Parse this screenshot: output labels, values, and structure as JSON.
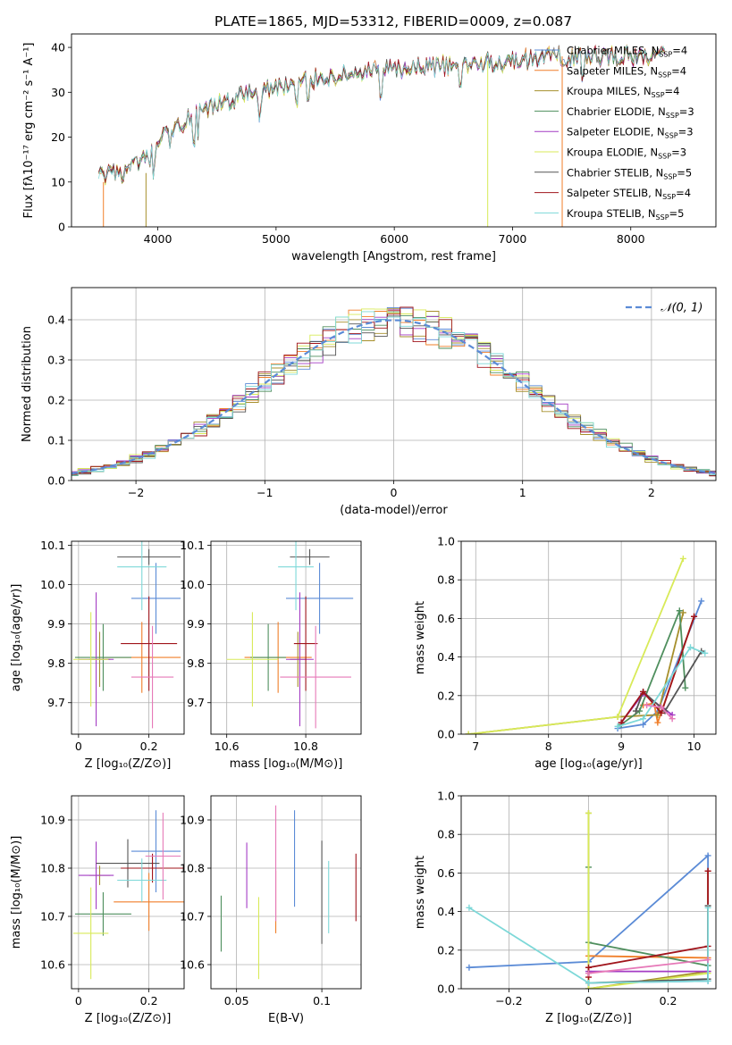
{
  "title": "PLATE=1865, MJD=53312, FIBERID=0009, z=0.087",
  "colors": {
    "CM": "#5b8bd6",
    "SM": "#f07f2a",
    "KM": "#a68f2c",
    "CE": "#4f8f5e",
    "SE": "#a43cc4",
    "KE": "#d8ea58",
    "CS": "#555555",
    "SS": "#a0141b",
    "KS": "#7dd8d8",
    "pink": "#e679b8",
    "gauss": "#5b8bd6"
  },
  "chart_data": [
    {
      "type": "line",
      "title": "PLATE=1865, MJD=53312, FIBERID=0009, z=0.087",
      "xlabel": "wavelength [Angstrom, rest frame]",
      "ylabel": "Flux [fλ10⁻¹⁷ erg cm⁻² s⁻¹ A⁻¹]",
      "xlim": [
        3270,
        8720
      ],
      "ylim": [
        0,
        43
      ],
      "xticks": [
        4000,
        5000,
        6000,
        7000,
        8000
      ],
      "yticks": [
        0,
        10,
        20,
        30,
        40
      ],
      "legend": "upper-right",
      "legend_entries": [
        {
          "key": "CM",
          "label": "Chabrier MILES, N_SSP=4"
        },
        {
          "key": "SM",
          "label": "Salpeter MILES, N_SSP=4"
        },
        {
          "key": "KM",
          "label": "Kroupa MILES, N_SSP=4"
        },
        {
          "key": "CE",
          "label": "Chabrier ELODIE, N_SSP=3"
        },
        {
          "key": "SE",
          "label": "Salpeter ELODIE, N_SSP=3"
        },
        {
          "key": "KE",
          "label": "Kroupa ELODIE, N_SSP=3"
        },
        {
          "key": "CS",
          "label": "Chabrier STELIB, N_SSP=5"
        },
        {
          "key": "SS",
          "label": "Salpeter STELIB, N_SSP=4"
        },
        {
          "key": "KS",
          "label": "Kroupa STELIB, N_SSP=5"
        }
      ],
      "continuum": [
        [
          3500,
          11
        ],
        [
          3700,
          12
        ],
        [
          3900,
          15
        ],
        [
          4000,
          19
        ],
        [
          4200,
          23
        ],
        [
          4500,
          27
        ],
        [
          4800,
          30
        ],
        [
          5000,
          31
        ],
        [
          5300,
          33
        ],
        [
          5600,
          34
        ],
        [
          6000,
          35
        ],
        [
          6500,
          36
        ],
        [
          7000,
          37
        ],
        [
          7300,
          38
        ],
        [
          8300,
          38
        ]
      ]
    },
    {
      "type": "histogram",
      "xlabel": "(data-model)/error",
      "ylabel": "Normed distribution",
      "xlim": [
        -2.5,
        2.5
      ],
      "ylim": [
        0,
        0.48
      ],
      "xticks": [
        -2,
        -1,
        0,
        1,
        2
      ],
      "yticks": [
        0.0,
        0.1,
        0.2,
        0.3,
        0.4
      ],
      "legend": "upper-right",
      "legend_label": "𝒩(0, 1)",
      "bin_width": 0.1,
      "curve": "standard normal density"
    },
    {
      "type": "scatter",
      "xlabel": "Z [log₁₀(Z/Z⊙)]",
      "ylabel": "age  [log₁₀(age/yr)]",
      "xlim": [
        -0.02,
        0.3
      ],
      "ylim": [
        9.62,
        10.11
      ],
      "xticks": [
        0.0,
        0.2
      ],
      "yticks": [
        9.7,
        9.8,
        9.9,
        10.0,
        10.1
      ],
      "points": [
        {
          "key": "CM",
          "x": 0.22,
          "xe": 0.07,
          "y": 9.965,
          "ye": 0.09
        },
        {
          "key": "SM",
          "x": 0.18,
          "xe": 0.11,
          "y": 9.815,
          "ye": 0.09
        },
        {
          "key": "KM",
          "x": 0.06,
          "xe": 0.03,
          "y": 9.81,
          "ye": 0.07
        },
        {
          "key": "CE",
          "x": 0.07,
          "xe": 0.08,
          "y": 9.815,
          "ye": 0.085
        },
        {
          "key": "SE",
          "x": 0.05,
          "xe": 0.05,
          "y": 9.81,
          "ye": 0.17
        },
        {
          "key": "KE",
          "x": 0.035,
          "xe": 0.05,
          "y": 9.81,
          "ye": 0.12
        },
        {
          "key": "CS",
          "x": 0.2,
          "xe": 0.09,
          "y": 10.07,
          "ye": 0.02
        },
        {
          "key": "SS",
          "x": 0.2,
          "xe": 0.08,
          "y": 9.85,
          "ye": 0.12
        },
        {
          "key": "KS",
          "x": 0.18,
          "xe": 0.07,
          "y": 10.045,
          "ye": 0.11
        },
        {
          "key": "pink",
          "x": 0.21,
          "xe": 0.06,
          "y": 9.765,
          "ye": 0.13
        }
      ]
    },
    {
      "type": "scatter",
      "xlabel": "mass [log₁₀(M/M⊙)]",
      "ylabel": "",
      "xlim": [
        10.56,
        10.94
      ],
      "ylim": [
        9.62,
        10.11
      ],
      "xticks": [
        10.6,
        10.8
      ],
      "yticks": [
        9.7,
        9.8,
        9.9,
        10.0,
        10.1
      ],
      "points": [
        {
          "key": "CM",
          "x": 10.835,
          "xe": 0.085,
          "y": 9.965,
          "ye": 0.09
        },
        {
          "key": "SM",
          "x": 10.73,
          "xe": 0.085,
          "y": 9.815,
          "ye": 0.09
        },
        {
          "key": "KM",
          "x": 10.78,
          "xe": 0.02,
          "y": 9.81,
          "ye": 0.07
        },
        {
          "key": "CE",
          "x": 10.705,
          "xe": 0.045,
          "y": 9.815,
          "ye": 0.085
        },
        {
          "key": "SE",
          "x": 10.785,
          "xe": 0.035,
          "y": 9.81,
          "ye": 0.17
        },
        {
          "key": "KE",
          "x": 10.665,
          "xe": 0.065,
          "y": 9.81,
          "ye": 0.12
        },
        {
          "key": "CS",
          "x": 10.81,
          "xe": 0.05,
          "y": 10.07,
          "ye": 0.02
        },
        {
          "key": "SS",
          "x": 10.8,
          "xe": 0.03,
          "y": 9.85,
          "ye": 0.12
        },
        {
          "key": "KS",
          "x": 10.775,
          "xe": 0.045,
          "y": 10.045,
          "ye": 0.11
        },
        {
          "key": "pink",
          "x": 10.825,
          "xe": 0.09,
          "y": 9.765,
          "ye": 0.13
        }
      ]
    },
    {
      "type": "line",
      "xlabel": "age  [log₁₀(age/yr)]",
      "ylabel": "mass weight",
      "xlim": [
        6.8,
        10.3
      ],
      "ylim": [
        0,
        1.0
      ],
      "xticks": [
        7,
        8,
        9,
        10
      ],
      "yticks": [
        0.0,
        0.2,
        0.4,
        0.6,
        0.8,
        1.0
      ],
      "series": [
        {
          "key": "CM",
          "points": [
            [
              8.95,
              0.03
            ],
            [
              9.3,
              0.05
            ],
            [
              9.5,
              0.12
            ],
            [
              10.1,
              0.69
            ]
          ]
        },
        {
          "key": "SM",
          "points": [
            [
              9.3,
              0.15
            ],
            [
              9.45,
              0.16
            ],
            [
              9.5,
              0.06
            ],
            [
              10.0,
              0.61
            ]
          ]
        },
        {
          "key": "KM",
          "points": [
            [
              6.9,
              0.0
            ],
            [
              8.95,
              0.09
            ],
            [
              9.5,
              0.1
            ],
            [
              9.85,
              0.63
            ]
          ]
        },
        {
          "key": "CE",
          "points": [
            [
              9.0,
              0.05
            ],
            [
              9.25,
              0.12
            ],
            [
              9.8,
              0.64
            ],
            [
              9.88,
              0.24
            ]
          ]
        },
        {
          "key": "SE",
          "points": [
            [
              9.0,
              0.06
            ],
            [
              9.3,
              0.21
            ],
            [
              9.7,
              0.1
            ]
          ]
        },
        {
          "key": "KE",
          "points": [
            [
              6.9,
              0.0
            ],
            [
              8.95,
              0.09
            ],
            [
              9.85,
              0.91
            ]
          ]
        },
        {
          "key": "CS",
          "points": [
            [
              9.2,
              0.12
            ],
            [
              9.3,
              0.22
            ],
            [
              9.6,
              0.12
            ],
            [
              10.1,
              0.43
            ]
          ]
        },
        {
          "key": "SS",
          "points": [
            [
              9.0,
              0.06
            ],
            [
              9.3,
              0.22
            ],
            [
              9.55,
              0.11
            ],
            [
              10.0,
              0.61
            ]
          ]
        },
        {
          "key": "KS",
          "points": [
            [
              8.95,
              0.04
            ],
            [
              9.3,
              0.08
            ],
            [
              9.95,
              0.45
            ],
            [
              10.15,
              0.42
            ]
          ]
        },
        {
          "key": "pink",
          "points": [
            [
              9.35,
              0.15
            ],
            [
              9.55,
              0.14
            ],
            [
              9.7,
              0.08
            ]
          ]
        }
      ]
    },
    {
      "type": "scatter",
      "xlabel": "Z [log₁₀(Z/Z⊙)]",
      "ylabel": "mass [log₁₀(M/M⊙)]",
      "xlim": [
        -0.02,
        0.3
      ],
      "ylim": [
        10.55,
        10.95
      ],
      "xticks": [
        0.0,
        0.2
      ],
      "yticks": [
        10.6,
        10.7,
        10.8,
        10.9
      ],
      "points": [
        {
          "key": "CM",
          "x": 0.22,
          "xe": 0.07,
          "y": 10.835,
          "ye": 0.085
        },
        {
          "key": "SM",
          "x": 0.2,
          "xe": 0.1,
          "y": 10.73,
          "ye": 0.06
        },
        {
          "key": "KM",
          "x": 0.06,
          "xe": 0.03,
          "y": 10.785,
          "ye": 0.02
        },
        {
          "key": "CE",
          "x": 0.07,
          "xe": 0.08,
          "y": 10.705,
          "ye": 0.045
        },
        {
          "key": "SE",
          "x": 0.05,
          "xe": 0.05,
          "y": 10.785,
          "ye": 0.07
        },
        {
          "key": "KE",
          "x": 0.035,
          "xe": 0.05,
          "y": 10.665,
          "ye": 0.095
        },
        {
          "key": "CS",
          "x": 0.14,
          "xe": 0.09,
          "y": 10.81,
          "ye": 0.05
        },
        {
          "key": "SS",
          "x": 0.21,
          "xe": 0.09,
          "y": 10.8,
          "ye": 0.03
        },
        {
          "key": "KS",
          "x": 0.18,
          "xe": 0.07,
          "y": 10.775,
          "ye": 0.045
        },
        {
          "key": "pink",
          "x": 0.24,
          "xe": 0.05,
          "y": 10.825,
          "ye": 0.09
        }
      ]
    },
    {
      "type": "scatter",
      "xlabel": "E(B-V)",
      "ylabel": "",
      "xlim": [
        0.035,
        0.123
      ],
      "ylim": [
        10.55,
        10.95
      ],
      "xticks": [
        0.05,
        0.1
      ],
      "yticks": [
        10.6,
        10.7,
        10.8,
        10.9
      ],
      "points": [
        {
          "key": "CE",
          "x": 0.041,
          "y": 10.685,
          "ye": 0.058
        },
        {
          "key": "SE",
          "x": 0.056,
          "y": 10.785,
          "ye": 0.068
        },
        {
          "key": "KE",
          "x": 0.063,
          "y": 10.655,
          "ye": 0.085
        },
        {
          "key": "SM",
          "x": 0.073,
          "y": 10.73,
          "ye": 0.065
        },
        {
          "key": "pink",
          "x": 0.073,
          "y": 10.81,
          "ye": 0.12
        },
        {
          "key": "CM",
          "x": 0.084,
          "y": 10.82,
          "ye": 0.1
        },
        {
          "key": "CS",
          "x": 0.1,
          "y": 10.75,
          "ye": 0.107
        },
        {
          "key": "KS",
          "x": 0.104,
          "y": 10.74,
          "ye": 0.075
        },
        {
          "key": "SS",
          "x": 0.12,
          "y": 10.76,
          "ye": 0.07
        }
      ]
    },
    {
      "type": "line",
      "xlabel": "Z [log₁₀(Z/Z⊙)]",
      "ylabel": "mass weight",
      "xlim": [
        -0.32,
        0.32
      ],
      "ylim": [
        0,
        1.0
      ],
      "xticks": [
        -0.2,
        0.0,
        0.2
      ],
      "yticks": [
        0.0,
        0.2,
        0.4,
        0.6,
        0.8,
        1.0
      ],
      "series": [
        {
          "key": "CM",
          "points": [
            [
              -0.3,
              0.11
            ],
            [
              0.0,
              0.14
            ],
            [
              0.3,
              0.69
            ],
            [
              0.3,
              0.04
            ],
            [
              0.0,
              0.03
            ]
          ]
        },
        {
          "key": "SM",
          "points": [
            [
              0.0,
              0.17
            ],
            [
              0.3,
              0.16
            ],
            [
              0.3,
              0.61
            ]
          ]
        },
        {
          "key": "KM",
          "points": [
            [
              0.0,
              0.91
            ],
            [
              0.0,
              0.0
            ],
            [
              0.3,
              0.09
            ]
          ]
        },
        {
          "key": "CE",
          "points": [
            [
              0.0,
              0.63
            ],
            [
              0.0,
              0.24
            ],
            [
              0.3,
              0.12
            ]
          ]
        },
        {
          "key": "SE",
          "points": [
            [
              0.0,
              0.09
            ],
            [
              0.3,
              0.09
            ]
          ]
        },
        {
          "key": "KE",
          "points": [
            [
              0.0,
              0.91
            ],
            [
              0.0,
              0.0
            ],
            [
              0.3,
              0.08
            ]
          ]
        },
        {
          "key": "CS",
          "points": [
            [
              0.0,
              0.03
            ],
            [
              0.3,
              0.05
            ],
            [
              0.3,
              0.43
            ]
          ]
        },
        {
          "key": "SS",
          "points": [
            [
              0.0,
              0.06
            ],
            [
              0.0,
              0.11
            ],
            [
              0.3,
              0.22
            ],
            [
              0.3,
              0.61
            ]
          ]
        },
        {
          "key": "KS",
          "points": [
            [
              -0.3,
              0.42
            ],
            [
              0.0,
              0.03
            ],
            [
              0.3,
              0.04
            ],
            [
              0.3,
              0.42
            ]
          ]
        },
        {
          "key": "pink",
          "points": [
            [
              0.0,
              0.08
            ],
            [
              0.3,
              0.15
            ]
          ]
        }
      ]
    }
  ]
}
